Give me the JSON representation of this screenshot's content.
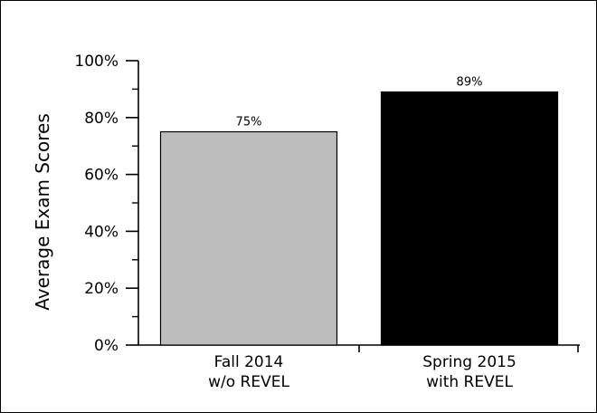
{
  "chart_data": {
    "type": "bar",
    "title": "",
    "xlabel": "",
    "ylabel": "Average Exam Scores",
    "ylim": [
      0,
      100
    ],
    "y_ticks": [
      0,
      20,
      40,
      60,
      80,
      100
    ],
    "y_tick_labels": [
      "0%",
      "20%",
      "40%",
      "60%",
      "80%",
      "100%"
    ],
    "categories": [
      [
        "Fall 2014",
        "w/o REVEL"
      ],
      [
        "Spring 2015",
        "with REVEL"
      ]
    ],
    "values": [
      75,
      89
    ],
    "data_labels": [
      "75%",
      "89%"
    ],
    "bar_colors": [
      "#bdbdbd",
      "#000000"
    ],
    "grid": false,
    "legend": "none"
  }
}
